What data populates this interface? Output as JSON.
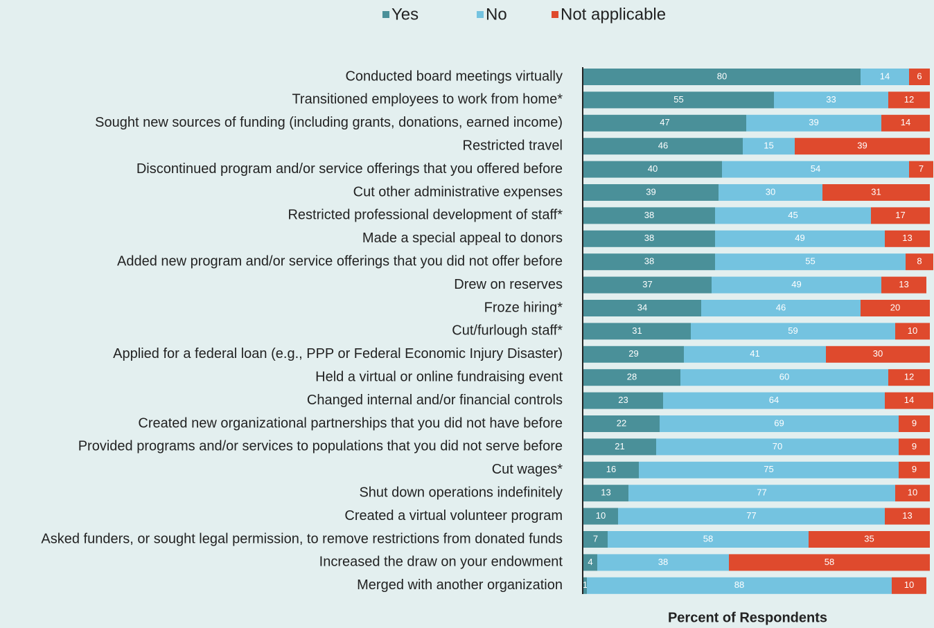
{
  "chart_data": {
    "type": "stacked-bar-horizontal",
    "x_label": "Percent of Respondents",
    "xlim": [
      0,
      100
    ],
    "legend": "top",
    "categories": [
      "Conducted board meetings virtually",
      "Transitioned employees to work from home*",
      "Sought new sources of funding (including grants, donations, earned income)",
      "Restricted travel",
      "Discontinued program and/or service offerings that you offered before",
      "Cut other administrative expenses",
      "Restricted professional development of staff*",
      "Made a special appeal to donors",
      "Added new program and/or service offerings that you did not offer before",
      "Drew on reserves",
      "Froze hiring*",
      "Cut/furlough staff*",
      "Applied for a federal loan (e.g., PPP or Federal Economic Injury Disaster)",
      "Held a virtual or online fundraising event",
      "Changed internal and/or financial controls",
      "Created new organizational partnerships that you did not have before",
      "Provided programs and/or services to populations that you did not serve before",
      "Cut wages*",
      "Shut down operations indefinitely",
      "Created a virtual volunteer program",
      "Asked funders, or sought legal permission, to remove restrictions from donated funds",
      "Increased the draw on your endowment",
      "Merged with another organization"
    ],
    "series": [
      {
        "name": "Yes",
        "color": "#4a9099",
        "values": [
          80,
          55,
          47,
          46,
          40,
          39,
          38,
          38,
          38,
          37,
          34,
          31,
          29,
          28,
          23,
          22,
          21,
          16,
          13,
          10,
          7,
          4,
          1
        ]
      },
      {
        "name": "No",
        "color": "#74c3e0",
        "values": [
          14,
          33,
          39,
          15,
          54,
          30,
          45,
          49,
          55,
          49,
          46,
          59,
          41,
          60,
          64,
          69,
          70,
          75,
          77,
          77,
          58,
          38,
          88
        ]
      },
      {
        "name": "Not applicable",
        "color": "#df4a2d",
        "values": [
          6,
          12,
          14,
          39,
          7,
          31,
          17,
          13,
          8,
          13,
          20,
          10,
          30,
          12,
          14,
          9,
          9,
          9,
          10,
          13,
          35,
          58,
          10
        ]
      }
    ]
  }
}
